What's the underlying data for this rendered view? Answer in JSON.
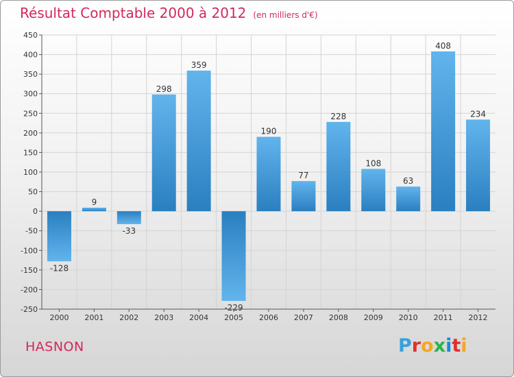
{
  "header": {
    "title": "Résultat Comptable 2000 à 2012",
    "unit": "(en milliers d'€)"
  },
  "footer": {
    "town": "HASNON",
    "logo_letters": [
      "P",
      "r",
      "o",
      "x",
      "i",
      "t",
      "i"
    ],
    "logo_colors": [
      "#3aa0dc",
      "#e0312c",
      "#f5a623",
      "#2ab34a",
      "#1e88d6",
      "#e0312c",
      "#f5a623"
    ]
  },
  "chart_data": {
    "type": "bar",
    "title": "Résultat Comptable 2000 à 2012",
    "subtitle": "(en milliers d'€)",
    "xlabel": "",
    "ylabel": "",
    "categories": [
      "2000",
      "2001",
      "2002",
      "2003",
      "2004",
      "2005",
      "2006",
      "2007",
      "2008",
      "2009",
      "2010",
      "2011",
      "2012"
    ],
    "values": [
      -128,
      9,
      -33,
      298,
      359,
      -229,
      190,
      77,
      228,
      108,
      63,
      408,
      234
    ],
    "ylim": [
      -250,
      450
    ],
    "yticks": [
      -250,
      -200,
      -150,
      -100,
      -50,
      0,
      50,
      100,
      150,
      200,
      250,
      300,
      350,
      400,
      450
    ],
    "grid": true,
    "colors": {
      "bar_light": "#62b4ec",
      "bar_dark": "#2a7fc0",
      "grid": "#d3d3d3"
    }
  }
}
